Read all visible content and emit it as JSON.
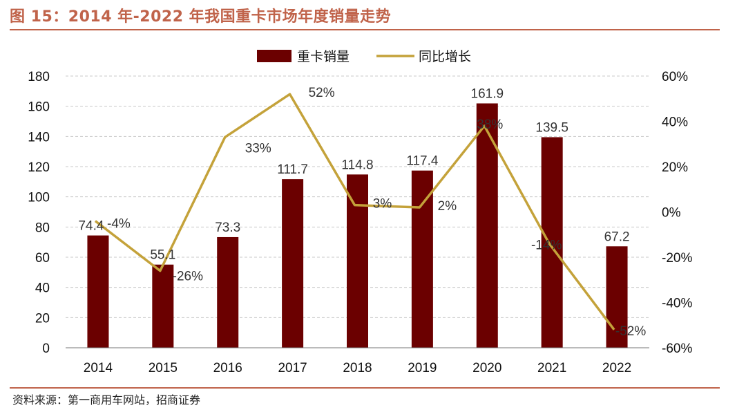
{
  "title": "图 15：2014 年-2022 年我国重卡市场年度销量走势",
  "source": "资料来源：第一商用车网站，招商证券",
  "colors": {
    "bar": "#6b0000",
    "line": "#c4a23a",
    "title": "#c0634a",
    "grid": "#c8c8c8"
  },
  "chart_data": {
    "type": "bar+line",
    "categories": [
      "2014",
      "2015",
      "2016",
      "2017",
      "2018",
      "2019",
      "2020",
      "2021",
      "2022"
    ],
    "series": [
      {
        "name": "重卡销量",
        "type": "bar",
        "axis": "left",
        "values": [
          74.4,
          55.1,
          73.3,
          111.7,
          114.8,
          117.4,
          161.9,
          139.5,
          67.2
        ],
        "labels": [
          "74.4",
          "55.1",
          "73.3",
          "111.7",
          "114.8",
          "117.4",
          "161.9",
          "139.5",
          "67.2"
        ]
      },
      {
        "name": "同比增长",
        "type": "line",
        "axis": "right",
        "values": [
          -4,
          -26,
          33,
          52,
          3,
          2,
          38,
          -14,
          -52
        ],
        "labels": [
          "-4%",
          "-26%",
          "33%",
          "52%",
          "3%",
          "2%",
          "38%",
          "-14%",
          "-52%"
        ]
      }
    ],
    "left_axis": {
      "min": 0,
      "max": 180,
      "step": 20,
      "ticks": [
        "0",
        "20",
        "40",
        "60",
        "80",
        "100",
        "120",
        "140",
        "160",
        "180"
      ]
    },
    "right_axis": {
      "min": -60,
      "max": 60,
      "step": 20,
      "ticks": [
        "-60%",
        "-40%",
        "-20%",
        "0%",
        "20%",
        "40%",
        "60%"
      ]
    },
    "legend": {
      "position": "top-center",
      "entries": [
        "重卡销量",
        "同比增长"
      ]
    },
    "grid": true
  }
}
